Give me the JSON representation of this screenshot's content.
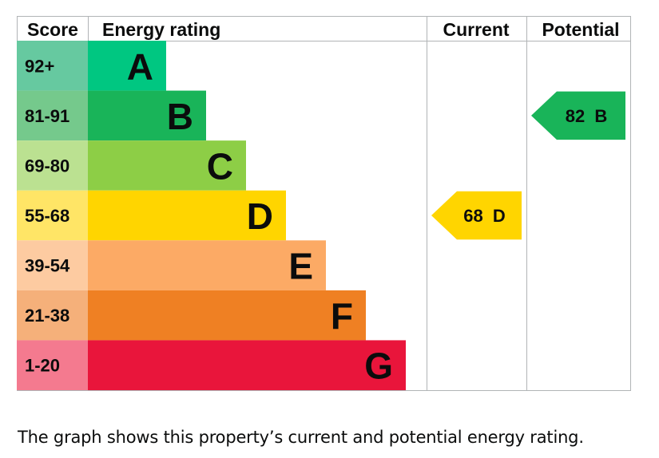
{
  "chart_data": {
    "type": "bar",
    "headers": {
      "score": "Score",
      "rating": "Energy rating",
      "current": "Current",
      "potential": "Potential"
    },
    "bands": [
      {
        "letter": "A",
        "score": "92+",
        "color": "#008054",
        "score_bg": "#66c9a0",
        "bar": "#00c781"
      },
      {
        "letter": "B",
        "score": "81-91",
        "color": "#19b459",
        "score_bg": "#75c98c",
        "bar": "#19b459"
      },
      {
        "letter": "C",
        "score": "69-80",
        "color": "#8dce46",
        "score_bg": "#bbe191",
        "bar": "#8dce46"
      },
      {
        "letter": "D",
        "score": "55-68",
        "color": "#ffd500",
        "score_bg": "#ffe566",
        "bar": "#ffd500"
      },
      {
        "letter": "E",
        "score": "39-54",
        "color": "#fcaa65",
        "score_bg": "#fdcba1",
        "bar": "#fcaa65"
      },
      {
        "letter": "F",
        "score": "21-38",
        "color": "#ef8023",
        "score_bg": "#f5b07a",
        "bar": "#ef8023"
      },
      {
        "letter": "G",
        "score": "1-20",
        "color": "#e9153b",
        "score_bg": "#f47a8f",
        "bar": "#e9153b"
      }
    ],
    "current": {
      "value": 68,
      "band": "D",
      "label": "68  D",
      "color": "#ffd500"
    },
    "potential": {
      "value": 82,
      "band": "B",
      "label": "82  B",
      "color": "#19b459"
    }
  },
  "caption": "The graph shows this property’s current and potential energy rating."
}
